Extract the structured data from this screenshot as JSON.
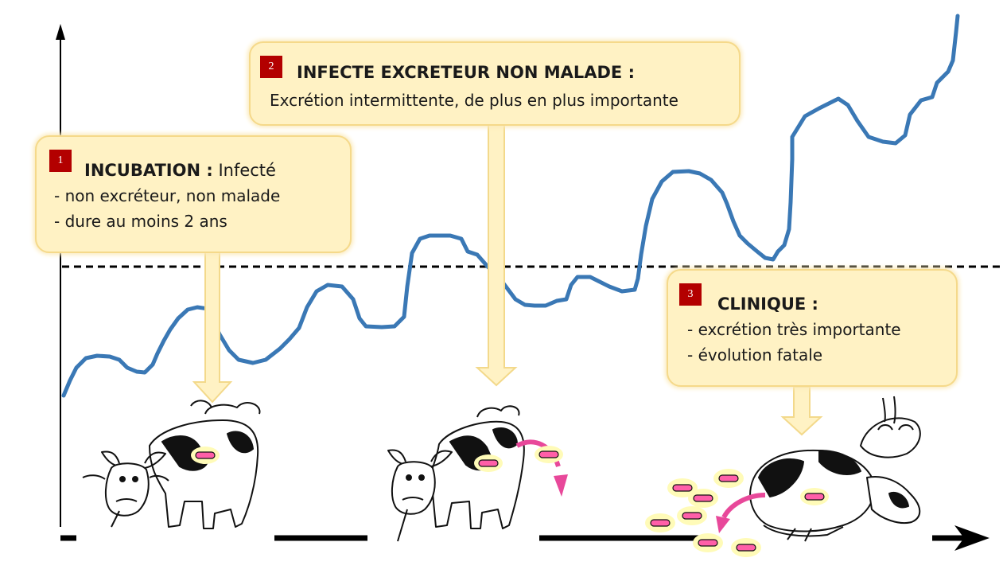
{
  "colors": {
    "curve": "#3a78b5",
    "box_fill": "#fff2c4",
    "box_border": "#f5d98a",
    "badge": "#b30000",
    "arrow_fill": "#fff2c4",
    "arrow_stroke": "#f3d98b",
    "bacteria": "#ff5fa8",
    "bacteria_halo": "#fffbb8",
    "excretion_arrow": "#e8489a"
  },
  "stages": [
    {
      "number": "1",
      "title": "INCUBATION :",
      "title_rest": " Infecté",
      "lines": [
        "-  non excréteur, non malade",
        "- dure au moins 2 ans"
      ]
    },
    {
      "number": "2",
      "title": "INFECTE EXCRETEUR NON MALADE :",
      "title_rest": "",
      "lines": [
        "Excrétion intermittente, de plus en plus importante"
      ]
    },
    {
      "number": "3",
      "title": "CLINIQUE :",
      "title_rest": "",
      "lines": [
        "-  excrétion très importante",
        "- évolution fatale"
      ]
    }
  ],
  "illustrations": [
    "standing-cow-icon",
    "excreting-cow-icon",
    "lying-cow-icon"
  ]
}
